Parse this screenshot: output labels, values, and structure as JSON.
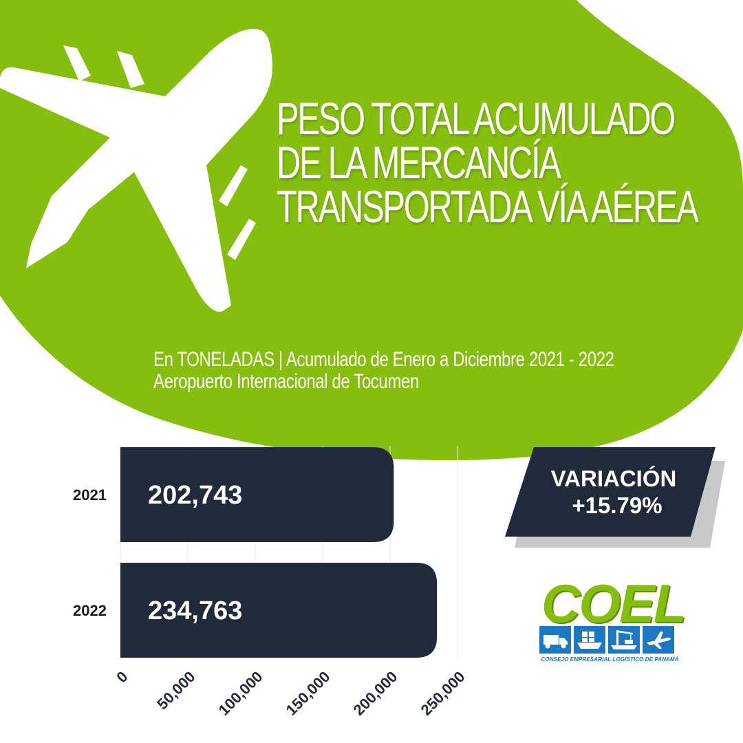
{
  "title_lines": [
    "PESO TOTAL ACUMULADO",
    "DE LA MERCANCÍA",
    "TRANSPORTADA VÍA AÉREA"
  ],
  "subtitle_lines": [
    "En TONELADAS | Acumulado de Enero a Diciembre 2021 - 2022",
    "Aeropuerto Internacional de Tocumen"
  ],
  "variation": {
    "label": "VARIACIÓN",
    "value": "+15.79%"
  },
  "logo": {
    "name": "COEL",
    "caption": "CONSEJO EMPRESARIAL LOGÍSTICO DE PANAMÁ",
    "icons": [
      "truck-icon",
      "cargo-ship-icon",
      "port-crane-icon",
      "airplane-icon"
    ]
  },
  "colors": {
    "green": "#86be0f",
    "navy": "#212a3b",
    "logo_blue": "#1e78c1",
    "white": "#ffffff"
  },
  "decor": {
    "background_icon": "airplane-icon"
  },
  "chart_data": {
    "type": "bar",
    "orientation": "horizontal",
    "categories": [
      "2021",
      "2022"
    ],
    "values": [
      202743,
      234763
    ],
    "value_labels": [
      "202,743",
      "234,763"
    ],
    "xlim": [
      0,
      250000
    ],
    "x_ticks": [
      0,
      50000,
      100000,
      150000,
      200000,
      250000
    ],
    "x_tick_labels": [
      "0",
      "50,000",
      "100,000",
      "150,000",
      "200,000",
      "250,000"
    ],
    "grid": true,
    "title": "PESO TOTAL ACUMULADO DE LA MERCANCÍA TRANSPORTADA VÍA AÉREA",
    "xlabel": "",
    "ylabel": ""
  }
}
